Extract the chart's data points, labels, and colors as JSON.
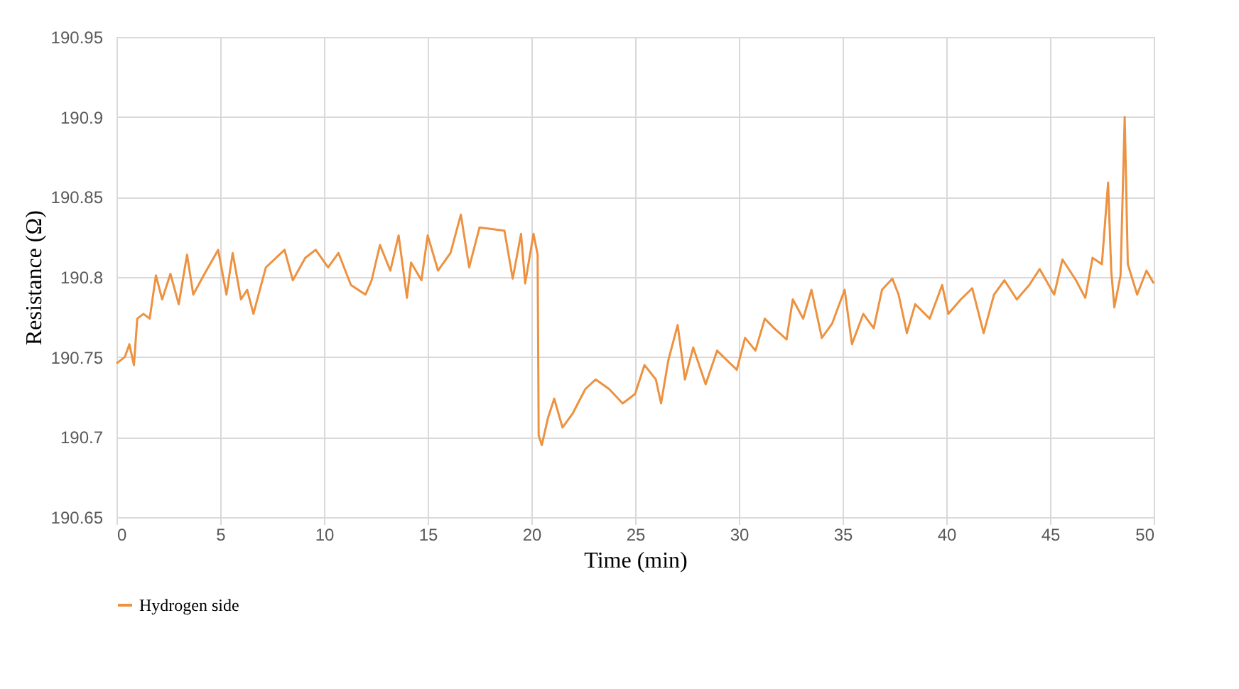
{
  "chart_data": {
    "type": "line",
    "xlabel": "Time (min)",
    "ylabel": "Resistance (Ω)",
    "xlim": [
      0,
      50
    ],
    "xticks": [
      0,
      5,
      10,
      15,
      20,
      25,
      30,
      35,
      40,
      45,
      50
    ],
    "ylim": [
      190.65,
      190.95
    ],
    "yticks": [
      190.65,
      190.7,
      190.75,
      190.8,
      190.85,
      190.9,
      190.95
    ],
    "grid": true,
    "legend": "bottom",
    "marker": "none",
    "line_style": "solid",
    "series": [
      {
        "name": "Hydrogen side",
        "color": "#ed9240",
        "x": [
          0,
          0.4,
          0.62,
          0.84,
          1.0,
          1.3,
          1.6,
          1.9,
          2.2,
          2.6,
          3.0,
          3.4,
          3.7,
          4.2,
          4.9,
          5.3,
          5.6,
          6.0,
          6.3,
          6.6,
          7.2,
          8.1,
          8.5,
          9.1,
          9.6,
          10.2,
          10.7,
          11.3,
          12.0,
          12.3,
          12.7,
          13.2,
          13.6,
          14.0,
          14.2,
          14.7,
          15.0,
          15.5,
          16.1,
          16.6,
          17.0,
          17.5,
          18.1,
          18.7,
          19.1,
          19.5,
          19.7,
          20.1,
          20.3,
          20.35,
          20.5,
          20.8,
          21.1,
          21.5,
          22.0,
          22.6,
          23.1,
          23.75,
          24.4,
          25.0,
          25.45,
          26.0,
          26.25,
          26.6,
          27.05,
          27.4,
          27.8,
          28.4,
          28.95,
          29.9,
          30.3,
          30.8,
          31.25,
          31.7,
          32.3,
          32.6,
          33.1,
          33.5,
          34.0,
          34.5,
          35.1,
          35.45,
          36.0,
          36.5,
          36.9,
          37.4,
          37.7,
          38.1,
          38.5,
          39.2,
          39.8,
          40.1,
          40.7,
          41.25,
          41.8,
          42.3,
          42.8,
          43.4,
          44.0,
          44.5,
          45.2,
          45.6,
          46.25,
          46.7,
          47.05,
          47.5,
          47.8,
          47.95,
          48.1,
          48.4,
          48.6,
          48.75,
          49.2,
          49.65,
          50.0
        ],
        "values": [
          190.746,
          190.75,
          190.758,
          190.745,
          190.774,
          190.777,
          190.774,
          190.801,
          190.786,
          190.802,
          190.783,
          190.814,
          190.789,
          190.801,
          190.817,
          190.789,
          190.815,
          190.786,
          190.792,
          190.777,
          190.806,
          190.817,
          190.798,
          190.812,
          190.817,
          190.806,
          190.815,
          190.795,
          190.789,
          190.798,
          190.82,
          190.804,
          190.826,
          190.787,
          190.809,
          190.798,
          190.826,
          190.804,
          190.815,
          190.839,
          190.806,
          190.831,
          190.83,
          190.829,
          190.799,
          190.827,
          190.796,
          190.827,
          190.814,
          190.701,
          190.695,
          190.712,
          190.724,
          190.706,
          190.715,
          190.73,
          190.736,
          190.73,
          190.721,
          190.727,
          190.745,
          190.736,
          190.721,
          190.748,
          190.77,
          190.736,
          190.756,
          190.733,
          190.754,
          190.742,
          190.762,
          190.754,
          190.774,
          190.768,
          190.761,
          190.786,
          190.774,
          190.792,
          190.762,
          190.771,
          190.792,
          190.758,
          190.777,
          190.768,
          190.792,
          190.799,
          190.789,
          190.765,
          190.783,
          190.774,
          190.795,
          190.777,
          190.786,
          190.793,
          190.765,
          190.789,
          190.798,
          190.786,
          190.795,
          190.805,
          190.789,
          190.811,
          190.798,
          190.787,
          190.812,
          190.808,
          190.859,
          190.804,
          190.781,
          190.801,
          190.9,
          190.808,
          190.789,
          190.804,
          190.796
        ]
      }
    ]
  }
}
